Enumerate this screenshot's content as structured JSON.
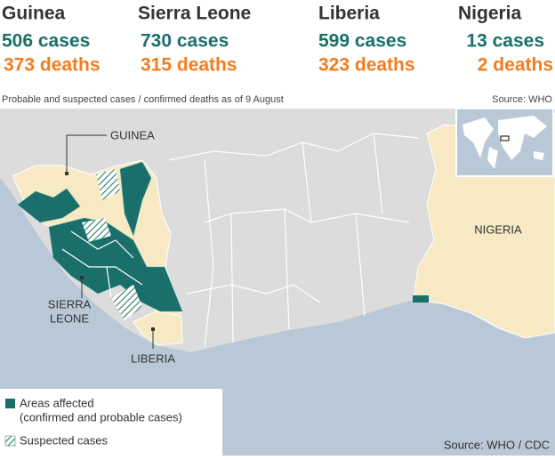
{
  "countries": [
    {
      "name": "Guinea",
      "cases": "506 cases",
      "deaths": "373 deaths"
    },
    {
      "name": "Sierra Leone",
      "cases": "730 cases",
      "deaths": "315 deaths"
    },
    {
      "name": "Liberia",
      "cases": "599 cases",
      "deaths": "323 deaths"
    },
    {
      "name": "Nigeria",
      "cases": "13 cases",
      "deaths": "2 deaths"
    }
  ],
  "subtitle": "Probable and suspected cases / confirmed deaths as of 9 August",
  "source_top": "Source: WHO",
  "map_labels": {
    "guinea": "GUINEA",
    "sierra_leone": [
      "SIERRA",
      "LEONE"
    ],
    "liberia": "LIBERIA",
    "nigeria": "NIGERIA"
  },
  "legend": {
    "affected": [
      "Areas affected",
      "(confirmed and probable cases)"
    ],
    "suspected": "Suspected cases"
  },
  "source_bottom": "Source: WHO / CDC"
}
